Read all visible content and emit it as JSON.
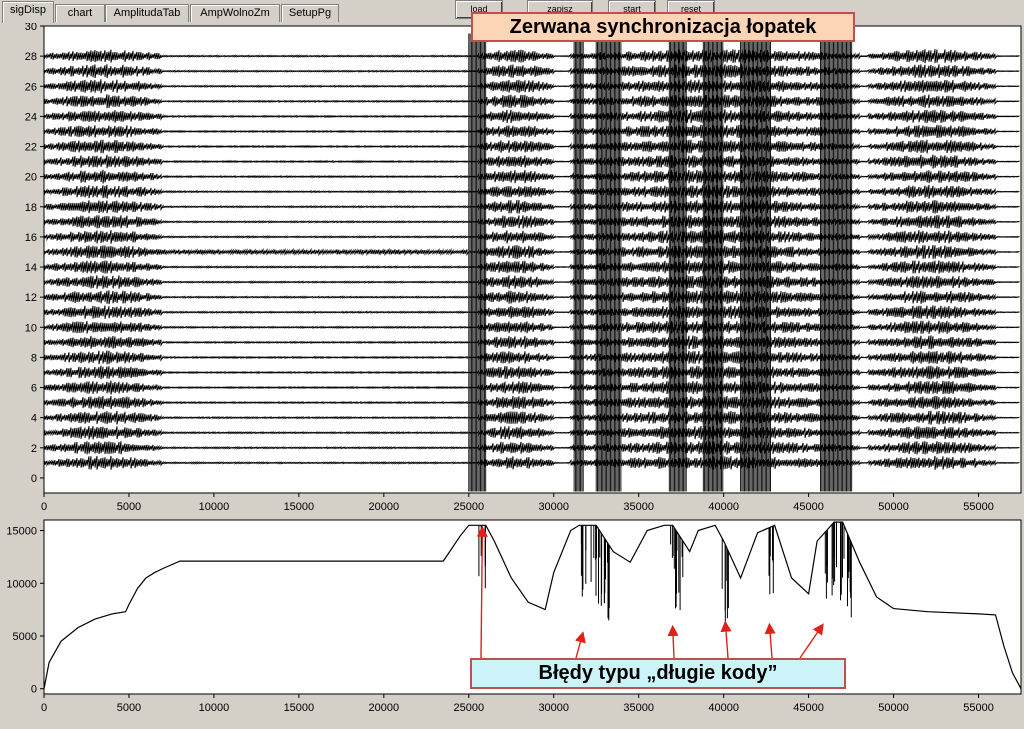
{
  "tabs": [
    {
      "label": "sigDisp",
      "active": true
    },
    {
      "label": "chart",
      "active": false
    },
    {
      "label": "AmplitudaTab",
      "active": false
    },
    {
      "label": "AmpWolnoZm",
      "active": false
    },
    {
      "label": "SetupPg",
      "active": false
    }
  ],
  "top_buttons": [
    {
      "label": "load"
    },
    {
      "label": "zapisz"
    },
    {
      "label": "start"
    },
    {
      "label": "reset"
    }
  ],
  "annotations": {
    "top": "Zerwana synchronizacja łopatek",
    "bottom": "Błędy typu „długie kody”"
  },
  "colors": {
    "annotation_border": "#c0504d",
    "arrow": "#e0201a",
    "top_fill": "#fbd5b5",
    "bottom_fill": "#ccf4f8",
    "signal": "#000000"
  },
  "chart_data": [
    {
      "type": "line",
      "name": "signal-traces",
      "x_range": [
        0,
        57500
      ],
      "ylim": [
        -1,
        30
      ],
      "x_ticks": [
        "0",
        "5000",
        "10000",
        "15000",
        "20000",
        "25000",
        "30000",
        "35000",
        "40000",
        "45000",
        "50000",
        "55000"
      ],
      "y_ticks": [
        "0",
        "2",
        "4",
        "6",
        "8",
        "10",
        "12",
        "14",
        "16",
        "18",
        "20",
        "22",
        "24",
        "26",
        "28",
        "30"
      ],
      "trace_count": 28,
      "trace_baselines": [
        1,
        2,
        3,
        4,
        5,
        6,
        7,
        8,
        9,
        10,
        11,
        12,
        13,
        14,
        15,
        16,
        17,
        18,
        19,
        20,
        21,
        22,
        23,
        24,
        25,
        26,
        27,
        28
      ],
      "noisy_segments": [
        [
          0,
          7000
        ],
        [
          25500,
          30000
        ],
        [
          31000,
          48000
        ],
        [
          48500,
          56000
        ]
      ],
      "burst_regions": [
        [
          25000,
          26000
        ],
        [
          31200,
          31800
        ],
        [
          32500,
          34000
        ],
        [
          36800,
          37800
        ],
        [
          38800,
          40000
        ],
        [
          41000,
          42800
        ],
        [
          45700,
          47600
        ]
      ]
    },
    {
      "type": "line",
      "name": "amplitude-envelope",
      "x_range": [
        0,
        57500
      ],
      "ylim": [
        -500,
        16000
      ],
      "x_ticks": [
        "0",
        "5000",
        "10000",
        "15000",
        "20000",
        "25000",
        "30000",
        "35000",
        "40000",
        "45000",
        "50000",
        "55000"
      ],
      "y_ticks": [
        "0",
        "5000",
        "10000",
        "15000"
      ],
      "series": [
        {
          "name": "envelope",
          "x": [
            0,
            300,
            1000,
            2000,
            3000,
            4000,
            4800,
            5000,
            5500,
            6000,
            6500,
            7000,
            8000,
            20000,
            23500,
            24500,
            25000,
            26000,
            26500,
            27500,
            28500,
            29500,
            30000,
            31000,
            31500,
            32500,
            33500,
            34500,
            35500,
            36500,
            37000,
            38000,
            38500,
            39500,
            40000,
            41000,
            42000,
            43000,
            44000,
            45000,
            45500,
            46500,
            47000,
            48000,
            49000,
            50000,
            52000,
            55000,
            56000,
            56500,
            57000,
            57500
          ],
          "y": [
            0,
            2500,
            4500,
            5800,
            6600,
            7100,
            7300,
            8000,
            9500,
            10500,
            11000,
            11400,
            12100,
            12100,
            12100,
            14500,
            15500,
            15500,
            14000,
            10500,
            8200,
            7500,
            11000,
            15000,
            15500,
            15500,
            13000,
            12000,
            15000,
            15500,
            15500,
            13000,
            15000,
            15500,
            14000,
            10500,
            14800,
            15500,
            10500,
            9000,
            14000,
            15800,
            15800,
            12000,
            8700,
            7600,
            7300,
            7100,
            7000,
            4000,
            1500,
            0
          ]
        }
      ],
      "dropouts_x": [
        25800,
        31800,
        32400,
        32800,
        33200,
        37000,
        37400,
        40100,
        42700,
        46200,
        46700,
        47100,
        47400
      ]
    }
  ]
}
